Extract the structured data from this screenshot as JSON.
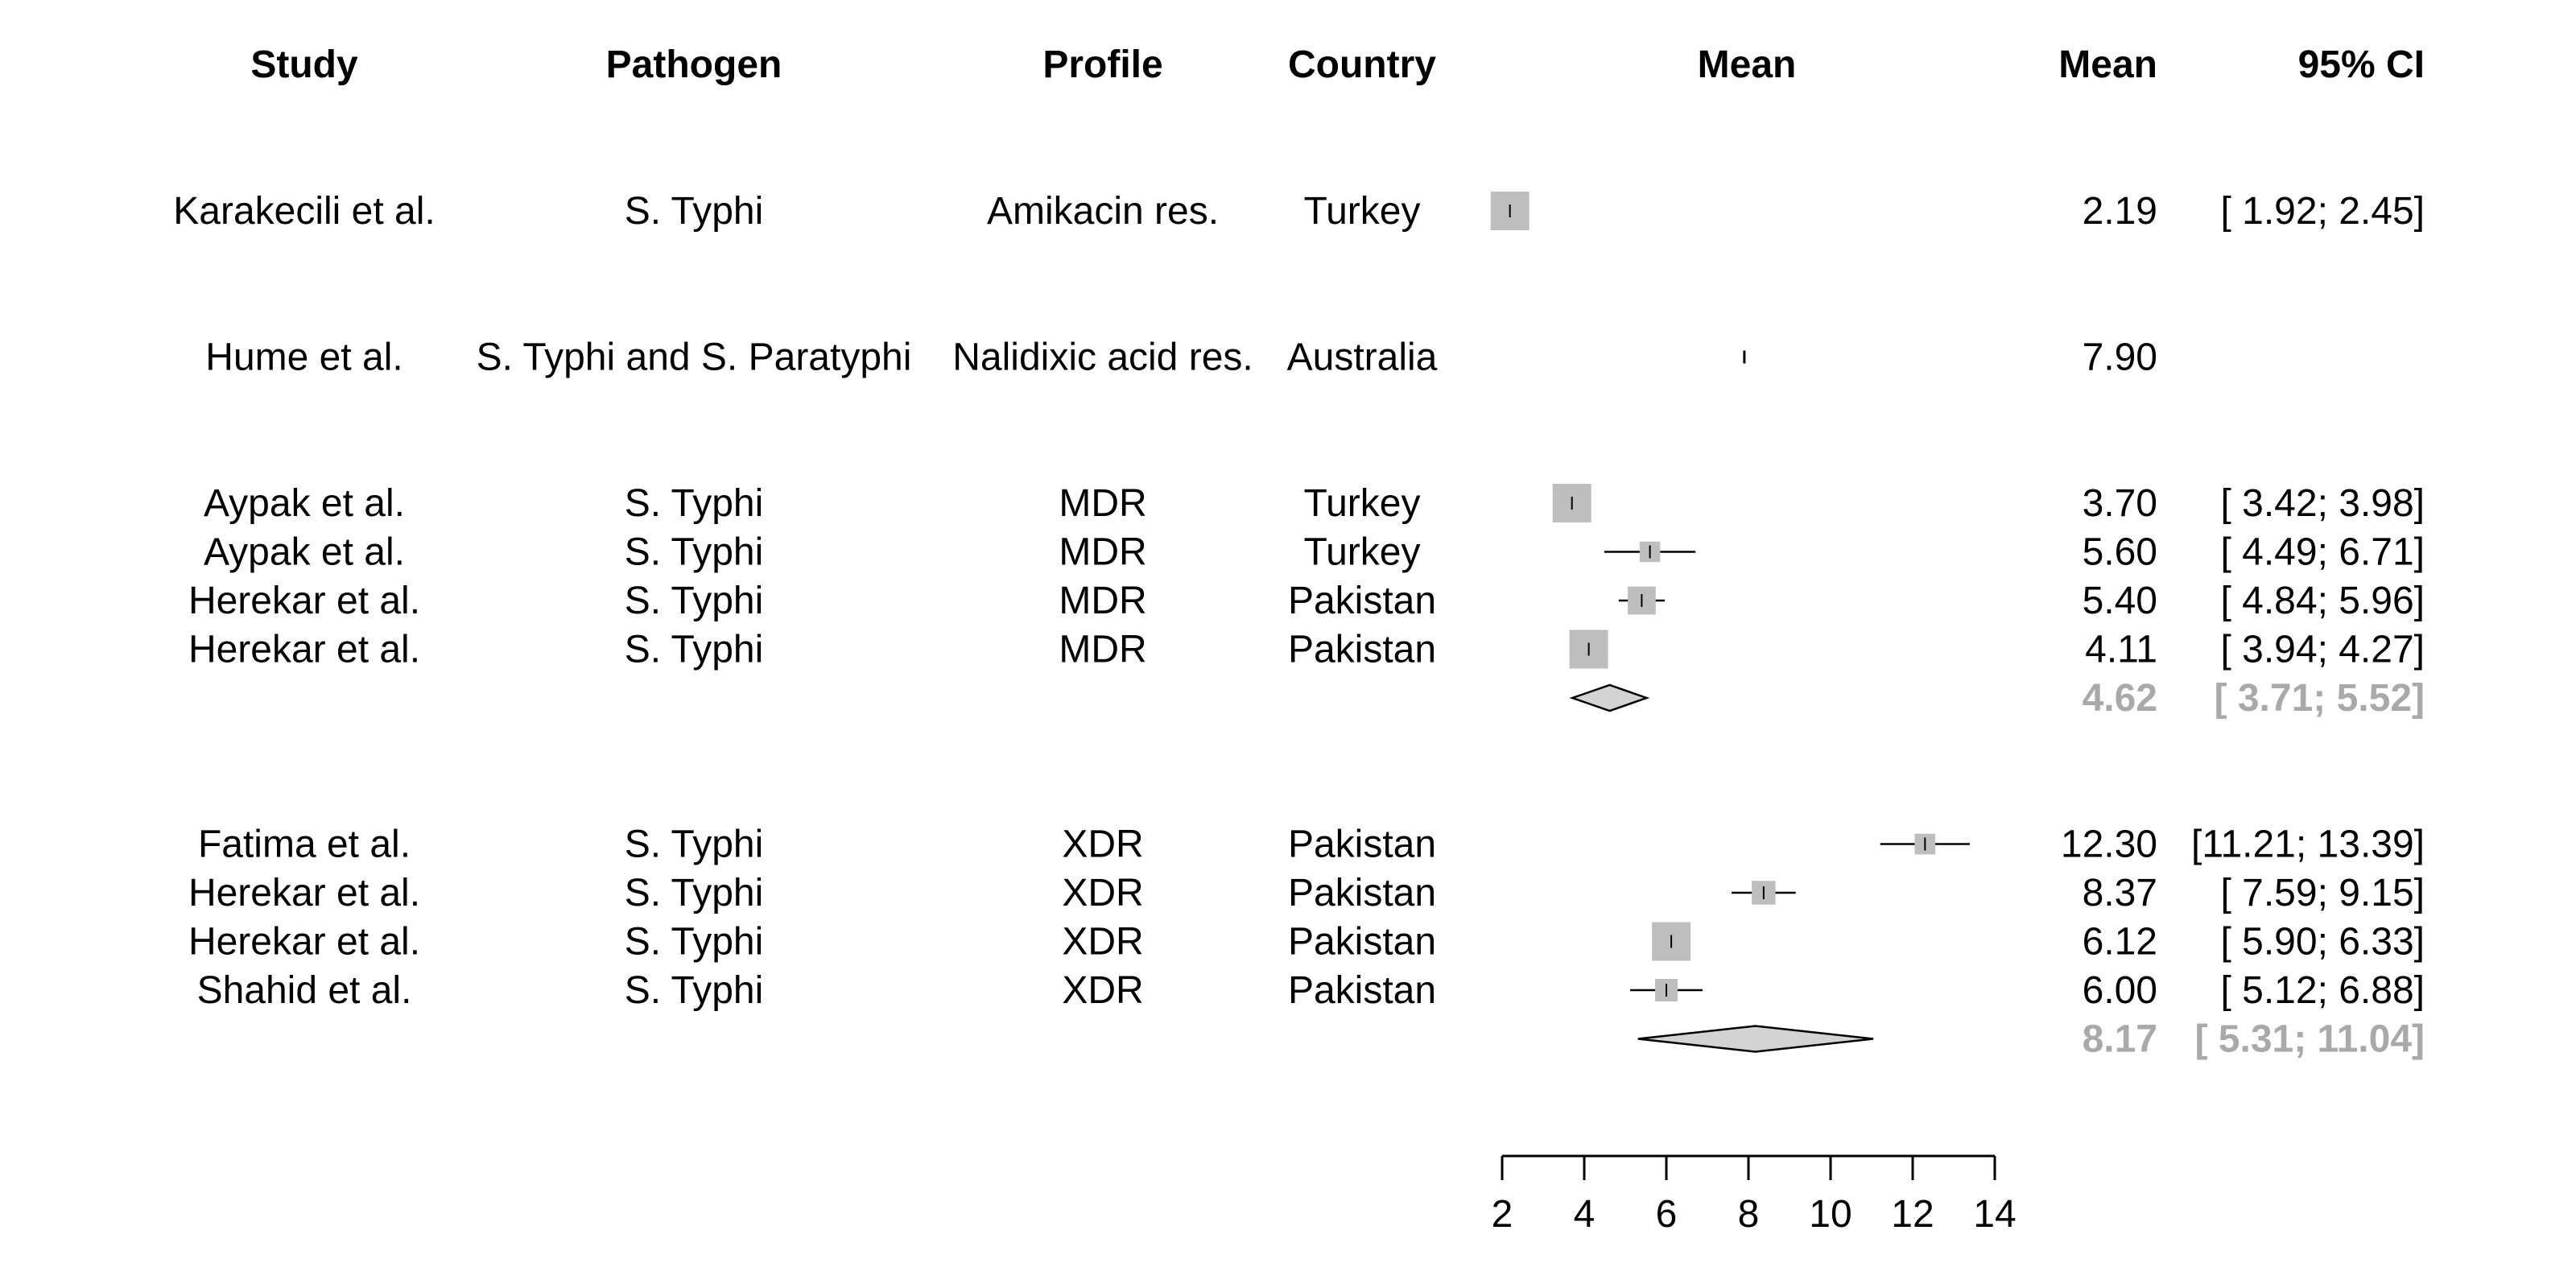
{
  "columns": {
    "study": "Study",
    "pathogen": "Pathogen",
    "profile": "Profile",
    "country": "Country",
    "plot": "Mean",
    "mean": "Mean",
    "ci": "95% CI"
  },
  "chart_data": {
    "type": "forest",
    "x_axis": {
      "ticks": [
        2,
        4,
        6,
        8,
        10,
        12,
        14
      ],
      "range": [
        2,
        14
      ]
    },
    "colors": {
      "box": "#bebebe",
      "diamond": "#d3d3d3",
      "summary_text": "#a9a9a9",
      "line": "#000000"
    },
    "groups": [
      {
        "studies": [
          {
            "study": "Karakecili et al.",
            "pathogen": "S. Typhi",
            "profile": "Amikacin res.",
            "country": "Turkey",
            "mean": 2.19,
            "lower": 1.92,
            "upper": 2.45,
            "mean_label": "2.19",
            "ci_label": "[ 1.92;  2.45]"
          }
        ]
      },
      {
        "studies": [
          {
            "study": "Hume et al.",
            "pathogen": "S. Typhi and S. Paratyphi",
            "profile": "Nalidixic acid res.",
            "country": "Australia",
            "mean": 7.9,
            "lower": null,
            "upper": null,
            "mean_label": "7.90",
            "ci_label": ""
          }
        ]
      },
      {
        "studies": [
          {
            "study": "Aypak et al.",
            "pathogen": "S. Typhi",
            "profile": "MDR",
            "country": "Turkey",
            "mean": 3.7,
            "lower": 3.42,
            "upper": 3.98,
            "mean_label": "3.70",
            "ci_label": "[ 3.42;  3.98]"
          },
          {
            "study": "Aypak et al.",
            "pathogen": "S. Typhi",
            "profile": "MDR",
            "country": "Turkey",
            "mean": 5.6,
            "lower": 4.49,
            "upper": 6.71,
            "mean_label": "5.60",
            "ci_label": "[ 4.49;  6.71]"
          },
          {
            "study": "Herekar et al.",
            "pathogen": "S. Typhi",
            "profile": "MDR",
            "country": "Pakistan",
            "mean": 5.4,
            "lower": 4.84,
            "upper": 5.96,
            "mean_label": "5.40",
            "ci_label": "[ 4.84;  5.96]"
          },
          {
            "study": "Herekar et al.",
            "pathogen": "S. Typhi",
            "profile": "MDR",
            "country": "Pakistan",
            "mean": 4.11,
            "lower": 3.94,
            "upper": 4.27,
            "mean_label": "4.11",
            "ci_label": "[ 3.94;  4.27]"
          }
        ],
        "summary": {
          "mean": 4.62,
          "lower": 3.71,
          "upper": 5.52,
          "mean_label": "4.62",
          "ci_label": "[ 3.71;  5.52]"
        }
      },
      {
        "studies": [
          {
            "study": "Fatima et al.",
            "pathogen": "S. Typhi",
            "profile": "XDR",
            "country": "Pakistan",
            "mean": 12.3,
            "lower": 11.21,
            "upper": 13.39,
            "mean_label": "12.30",
            "ci_label": "[11.21; 13.39]"
          },
          {
            "study": "Herekar et al.",
            "pathogen": "S. Typhi",
            "profile": "XDR",
            "country": "Pakistan",
            "mean": 8.37,
            "lower": 7.59,
            "upper": 9.15,
            "mean_label": "8.37",
            "ci_label": "[ 7.59;  9.15]"
          },
          {
            "study": "Herekar et al.",
            "pathogen": "S. Typhi",
            "profile": "XDR",
            "country": "Pakistan",
            "mean": 6.12,
            "lower": 5.9,
            "upper": 6.33,
            "mean_label": "6.12",
            "ci_label": "[ 5.90;  6.33]"
          },
          {
            "study": "Shahid et al.",
            "pathogen": "S. Typhi",
            "profile": "XDR",
            "country": "Pakistan",
            "mean": 6.0,
            "lower": 5.12,
            "upper": 6.88,
            "mean_label": "6.00",
            "ci_label": "[ 5.12;  6.88]"
          }
        ],
        "summary": {
          "mean": 8.17,
          "lower": 5.31,
          "upper": 11.04,
          "mean_label": "8.17",
          "ci_label": "[ 5.31; 11.04]"
        }
      }
    ]
  }
}
